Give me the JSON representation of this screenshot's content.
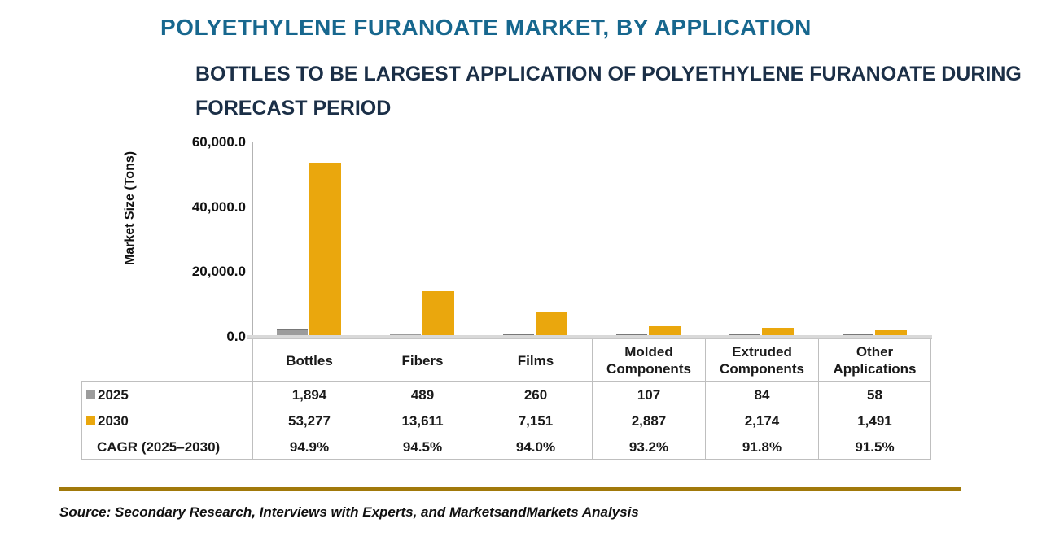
{
  "page": {
    "title": "POLYETHYLENE FURANOATE MARKET, BY APPLICATION",
    "subtitle_line1": "BOTTLES TO BE LARGEST APPLICATION OF POLYETHYLENE FURANOATE DURING",
    "subtitle_line2": "FORECAST PERIOD",
    "source": "Source: Secondary Research, Interviews with Experts, and MarketsandMarkets Analysis"
  },
  "colors": {
    "title_teal": "#17678E",
    "subtitle_navy": "#1B2F47",
    "series_2025_gray": "#9C9C9C",
    "series_2030_gold": "#EAA70D",
    "table_border": "#BFBFBF",
    "baseline_gray": "#D9D9D9",
    "source_rule_gold": "#A1790A"
  },
  "chart_data": {
    "type": "bar",
    "title": "BOTTLES TO BE LARGEST APPLICATION OF POLYETHYLENE FURANOATE DURING FORECAST PERIOD",
    "xlabel": "",
    "ylabel": "Market Size (Tons)",
    "ylim": [
      0,
      60000
    ],
    "ytick_values": [
      60000,
      40000,
      20000,
      0
    ],
    "ytick_labels": [
      "60,000.0",
      "40,000.0",
      "20,000.0",
      "0.0"
    ],
    "grid": false,
    "legend_position": "table-left",
    "categories": [
      "Bottles",
      "Fibers",
      "Films",
      "Molded Components",
      "Extruded Components",
      "Other Applications"
    ],
    "series": [
      {
        "name": "2025",
        "color": "#9C9C9C",
        "values": [
          1894,
          489,
          260,
          107,
          84,
          58
        ],
        "labels": [
          "1,894",
          "489",
          "260",
          "107",
          "84",
          "58"
        ]
      },
      {
        "name": "2030",
        "color": "#EAA70D",
        "values": [
          53277,
          13611,
          7151,
          2887,
          2174,
          1491
        ],
        "labels": [
          "53,277",
          "13,611",
          "7,151",
          "2,887",
          "2,174",
          "1,491"
        ]
      }
    ],
    "cagr_row": {
      "label": "CAGR (2025–2030)",
      "values": [
        "94.9%",
        "94.5%",
        "94.0%",
        "93.2%",
        "91.8%",
        "91.5%"
      ]
    }
  }
}
